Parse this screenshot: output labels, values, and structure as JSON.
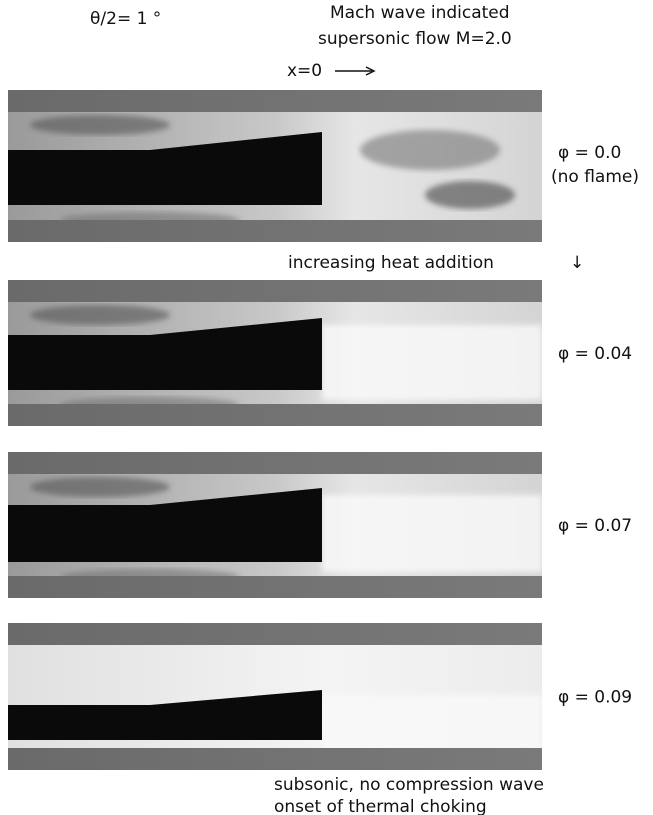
{
  "header": {
    "angle": "θ/2= 1 °",
    "note_line1": "Mach wave indicated",
    "note_line2": "supersonic flow M=2.0",
    "origin": "x=0"
  },
  "panels": [
    {
      "label": "φ = 0.0",
      "sublabel": "(no flame)"
    },
    {
      "label": "φ = 0.04"
    },
    {
      "label": "φ = 0.07"
    },
    {
      "label": "φ = 0.09"
    }
  ],
  "middle_note": "increasing heat addition",
  "footer": {
    "line1": "subsonic, no compression wave",
    "line2": "onset of thermal choking"
  }
}
